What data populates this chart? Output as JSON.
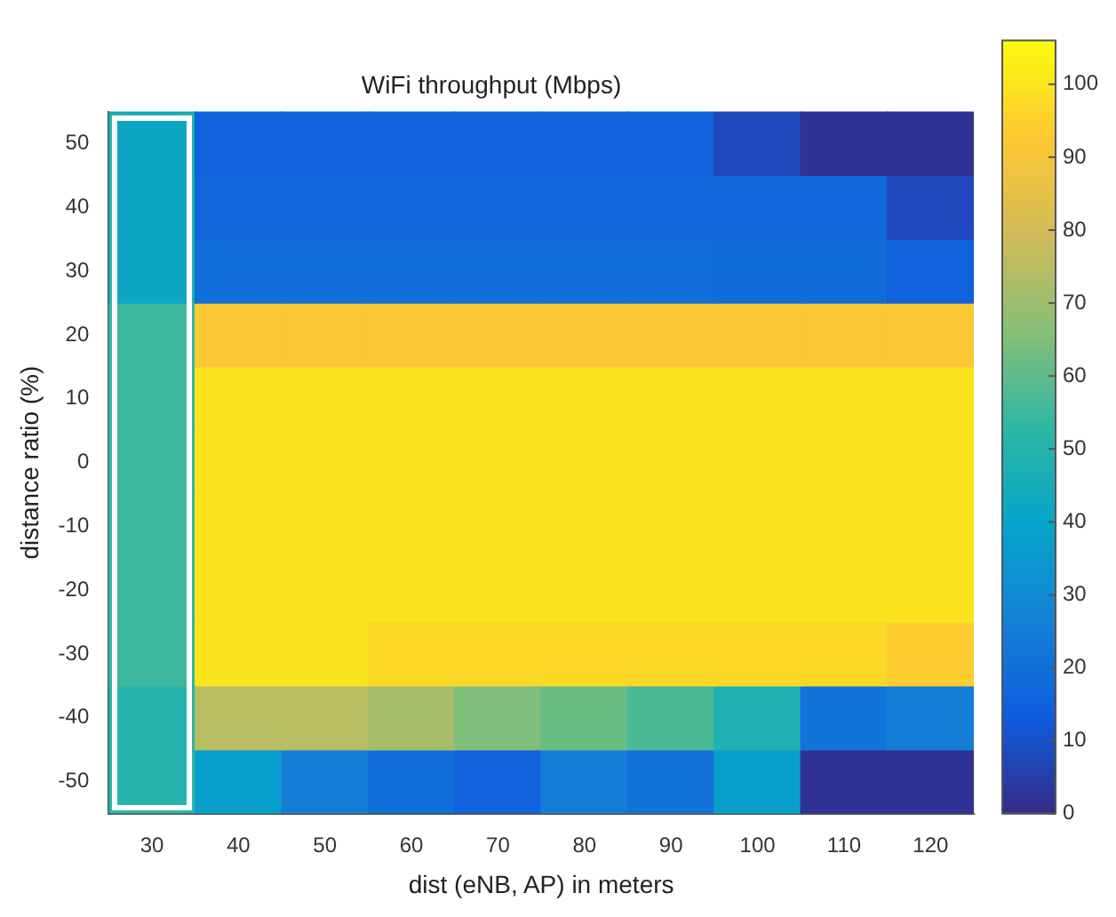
{
  "chart_data": {
    "type": "heatmap",
    "title": "WiFi throughput (Mbps)",
    "xlabel": "dist (eNB, AP) in meters",
    "ylabel": "distance ratio (%)",
    "categories": [
      "30",
      "40",
      "50",
      "60",
      "70",
      "80",
      "90",
      "100",
      "110",
      "120"
    ],
    "y_categories": [
      "50",
      "40",
      "30",
      "20",
      "10",
      "0",
      "-10",
      "-20",
      "-30",
      "-40",
      "-50"
    ],
    "cells": [
      [
        42,
        15,
        15,
        15,
        15,
        15,
        15,
        8,
        2,
        2
      ],
      [
        42,
        17,
        17,
        17,
        17,
        17,
        17,
        17,
        17,
        8
      ],
      [
        42,
        20,
        20,
        20,
        20,
        20,
        20,
        19,
        19,
        15
      ],
      [
        55,
        92,
        92,
        92,
        92,
        92,
        92,
        92,
        92,
        92
      ],
      [
        55,
        100,
        100,
        100,
        100,
        100,
        100,
        100,
        100,
        100
      ],
      [
        55,
        100,
        100,
        100,
        100,
        100,
        100,
        100,
        100,
        100
      ],
      [
        55,
        100,
        100,
        100,
        100,
        100,
        100,
        100,
        100,
        100
      ],
      [
        55,
        100,
        100,
        100,
        100,
        100,
        100,
        100,
        100,
        100
      ],
      [
        55,
        100,
        100,
        97,
        97,
        97,
        97,
        97,
        97,
        94
      ],
      [
        50,
        75,
        75,
        72,
        65,
        62,
        57,
        48,
        22,
        25
      ],
      [
        50,
        38,
        25,
        20,
        15,
        25,
        22,
        38,
        2,
        2
      ]
    ],
    "clim": [
      0,
      106
    ],
    "cticks": [
      0,
      10,
      20,
      30,
      40,
      50,
      60,
      70,
      80,
      90,
      100
    ]
  }
}
